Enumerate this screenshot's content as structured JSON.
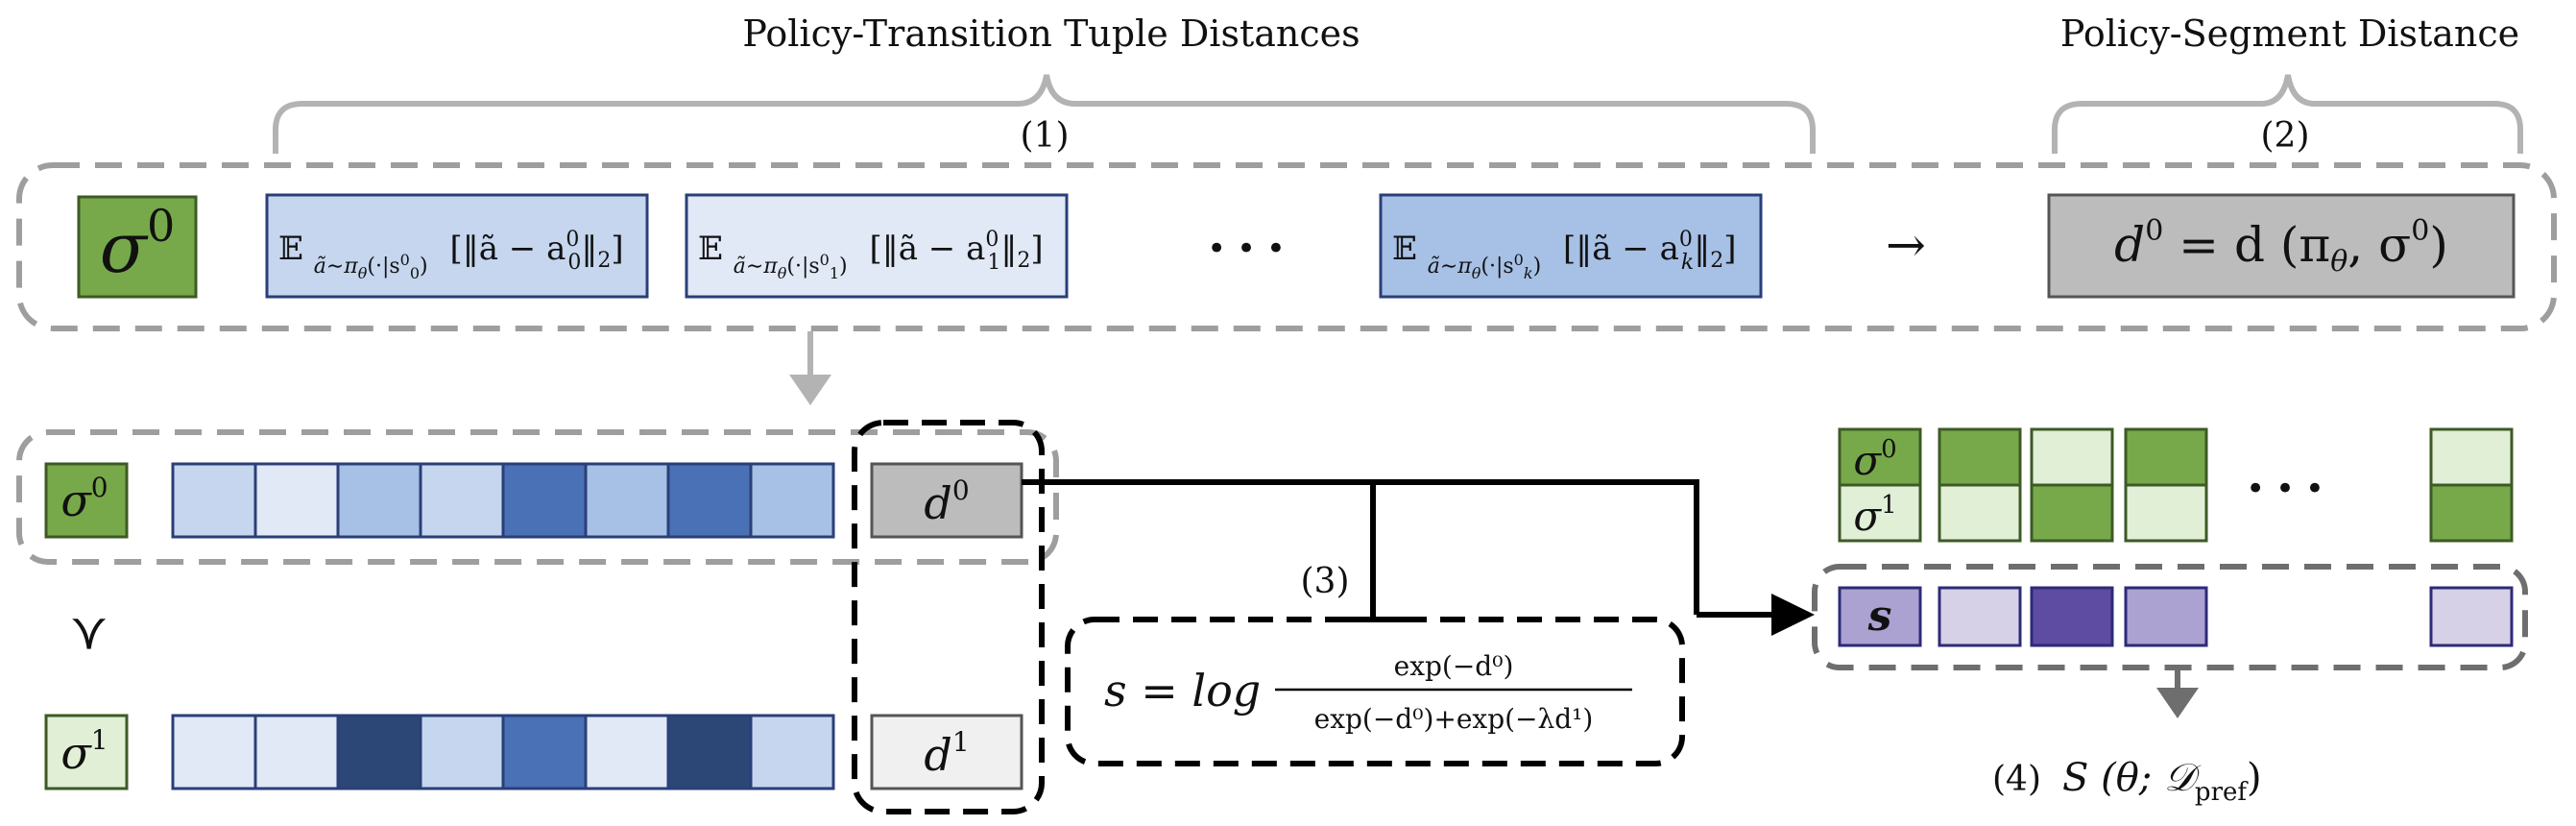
{
  "labels": {
    "top_tuple": "Policy-Transition Tuple Distances",
    "top_segment": "Policy-Segment Distance",
    "step1": "(1)",
    "step2": "(2)",
    "step3": "(3)",
    "step4": "(4)",
    "arrow_right": "→",
    "ellipsis": "• • •",
    "pref_symbol": "≻"
  },
  "math": {
    "sigma": "σ",
    "sup0": "0",
    "sup1": "1",
    "d": "d",
    "s": "s",
    "d0_def_lhs": "d",
    "d0_def_rhs": " = d (π",
    "theta": "θ",
    "d0_def_tail": ", σ",
    "close": ")",
    "E": "𝔼",
    "E_sub_pre": "ã∼π",
    "E_sub_mid": "(·|s",
    "E_body_pre": "[‖ã − a",
    "E_body_post": "‖",
    "two": "2",
    "rb": "]",
    "idx0": "0",
    "idx1": "1",
    "idxk": "k",
    "s_eq": "s = log",
    "frac_num": "exp(−d⁰)",
    "frac_den": "exp(−d⁰)+exp(−λd¹)",
    "score": "S (θ; 𝒟",
    "pref": "pref",
    "score_close": ")"
  },
  "colors": {
    "green_dark": "#77a94a",
    "green_light": "#e1efd6",
    "blue_light": "#c5d6ee",
    "blue_lighter": "#e1e8f6",
    "blue_mid": "#a7c0e5",
    "blue_dark": "#4a71b5",
    "blue_darker": "#2c4775",
    "purple_light": "#d7d1e8",
    "purple_mid": "#aba2d2",
    "purple_dark": "#5d4ca2",
    "gray_box": "#bcbcbc",
    "gray_light_box": "#f0f0f0"
  },
  "row0_cells": [
    "#c5d6ee",
    "#e1e8f6",
    "#a7c0e5",
    "#c5d6ee",
    "#4a71b5",
    "#a7c0e5",
    "#4a71b5",
    "#a7c0e5"
  ],
  "row1_cells": [
    "#e1e8f6",
    "#e1e8f6",
    "#2c4775",
    "#c5d6ee",
    "#4a71b5",
    "#e1e8f6",
    "#2c4775",
    "#c5d6ee"
  ],
  "pref_columns": [
    {
      "top": "#77a94a",
      "bottom": "#e1efd6"
    },
    {
      "top": "#e1efd6",
      "bottom": "#77a94a"
    },
    {
      "top": "#77a94a",
      "bottom": "#e1efd6"
    },
    {
      "top": "#e1efd6",
      "bottom": "#77a94a"
    }
  ],
  "score_cells": [
    "#d7d1e8",
    "#5d4ca2",
    "#aba2d2",
    "#d7d1e8"
  ]
}
